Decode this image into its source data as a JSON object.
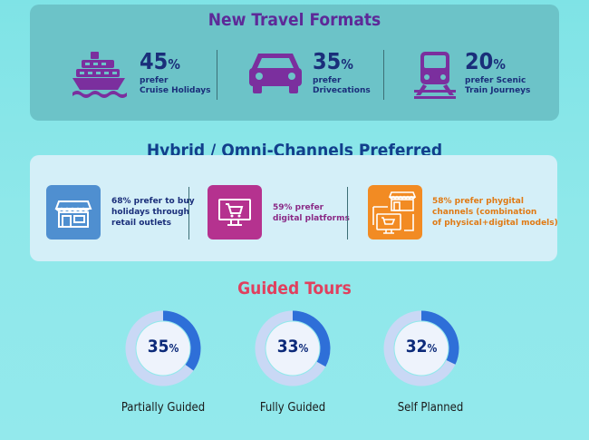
{
  "section1": {
    "title": "New Travel Formats",
    "items": [
      {
        "percent": "45",
        "symbol": "%",
        "line1": "prefer",
        "line2": "Cruise Holidays",
        "icon": "cruise-ship-icon"
      },
      {
        "percent": "35",
        "symbol": "%",
        "line1": "prefer",
        "line2": "Drivecations",
        "icon": "car-icon"
      },
      {
        "percent": "20",
        "symbol": "%",
        "line1": "prefer Scenic",
        "line2": "Train Journeys",
        "icon": "train-icon"
      }
    ],
    "colors": {
      "panel": "#6cc3c8",
      "title": "#5d2a98",
      "icon": "#7b2f9e",
      "text": "#1a2e7a"
    }
  },
  "section2": {
    "title": "Hybrid / Omni-Channels Preferred",
    "items": [
      {
        "line1": "68% prefer to buy",
        "line2": "holidays through",
        "line3": "retail outlets",
        "color": "#4f8fd0",
        "text_color": "#1a2e7a",
        "icon": "storefront-icon"
      },
      {
        "line1": "59% prefer",
        "line2": "digital platforms",
        "line3": "",
        "color": "#b5328f",
        "text_color": "#8a2a86",
        "icon": "monitor-cart-icon"
      },
      {
        "line1": "58% prefer phygital",
        "line2": "channels  (combination",
        "line3": "of physical+digital models)",
        "color": "#f28b23",
        "text_color": "#e07a14",
        "icon": "phygital-icon"
      }
    ],
    "colors": {
      "panel": "#d4eff8",
      "title": "#123f8c"
    }
  },
  "section3": {
    "title": "Guided Tours",
    "items": [
      {
        "label": "Partially Guided",
        "value": "35",
        "symbol": "%",
        "fraction": 0.35
      },
      {
        "label": "Fully Guided",
        "value": "33",
        "symbol": "%",
        "fraction": 0.33
      },
      {
        "label": "Self Planned",
        "value": "32",
        "symbol": "%",
        "fraction": 0.32
      }
    ],
    "colors": {
      "title": "#e0405e",
      "ring_fill": "#2e6fd8",
      "ring_track": "#c9d8f5",
      "value": "#0c2a7a"
    }
  }
}
